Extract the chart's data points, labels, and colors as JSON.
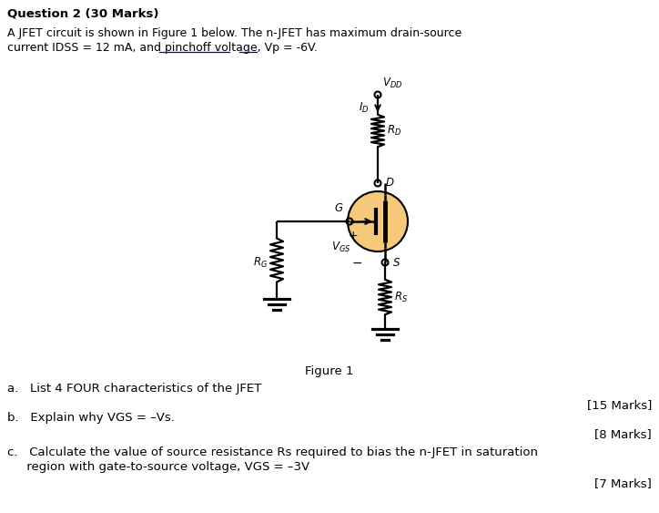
{
  "title": "Question 2 (30 Marks)",
  "intro_line1": "A JFET circuit is shown in Figure 1 below. The n-JFET has maximum drain-source",
  "intro_line2": "current IDSS = 12 mA, and pinchoff voltage, Vp = -6V.",
  "figure_label": "Figure 1",
  "qa": "a.   List 4 FOUR characteristics of the JFET",
  "marks_a": "[15 Marks]",
  "qb": "b.   Explain why VGS = –Vs.",
  "marks_b": "[8 Marks]",
  "qc_line1": "c.   Calculate the value of source resistance Rs required to bias the n-JFET in saturation",
  "qc_line2": "     region with gate-to-source voltage, VGS = –3V",
  "marks_c": "[7 Marks]",
  "bg_color": "#ffffff",
  "text_color": "#000000",
  "jfet_circle_color": "#f5c87a",
  "pinchoff_underline_color": "#0000cc",
  "vp_underline_color": "#0000cc"
}
